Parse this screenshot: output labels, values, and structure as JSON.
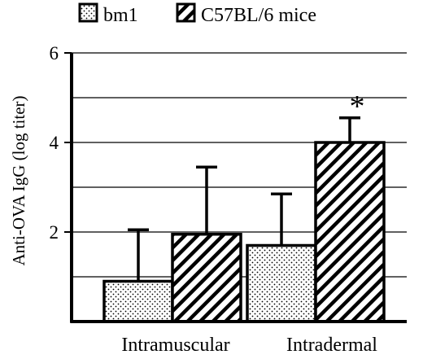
{
  "chart_data": {
    "type": "bar",
    "ylabel": "Anti-OVA IgG (log titer)",
    "xlabel": "",
    "categories": [
      "Intramuscular",
      "Intradermal"
    ],
    "ylim": [
      0,
      6
    ],
    "yticks": [
      2,
      4,
      6
    ],
    "grid_values": [
      1,
      2,
      3,
      4,
      5,
      6
    ],
    "grid": true,
    "legend_position": "top",
    "series": [
      {
        "name": "bm1",
        "pattern": "dots",
        "values": [
          0.9,
          1.7
        ],
        "errors": [
          1.15,
          1.15
        ]
      },
      {
        "name": "C57BL/6 mice",
        "pattern": "diagonal-stripes",
        "values": [
          1.95,
          4.0
        ],
        "errors": [
          1.5,
          0.55
        ]
      }
    ],
    "annotations": [
      {
        "text": "*",
        "category": "Intradermal",
        "series": "C57BL/6 mice"
      }
    ],
    "colors": {
      "bar_fill": "#ffffff",
      "ink": "#000000"
    }
  }
}
